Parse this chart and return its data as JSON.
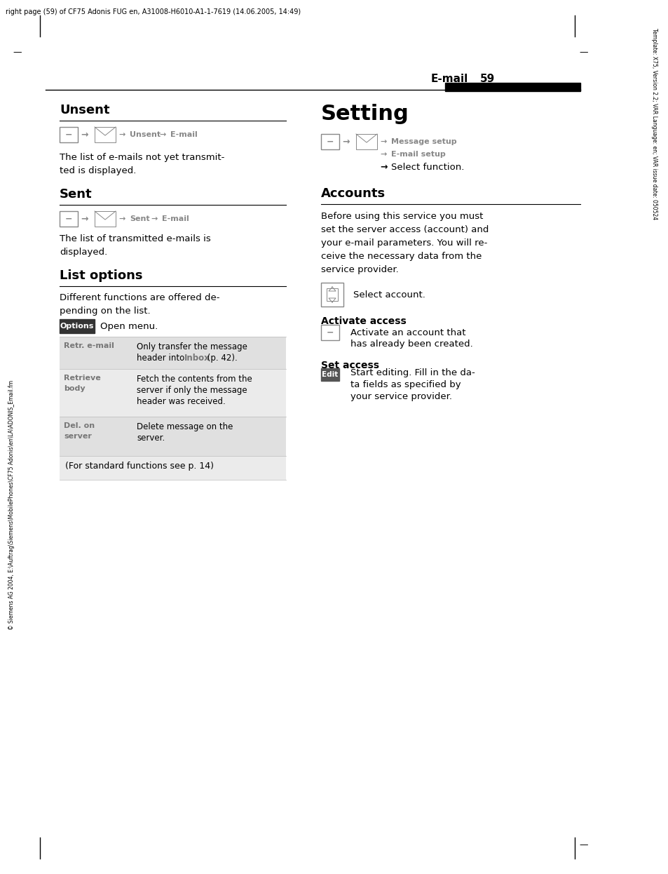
{
  "page_header": "right page (59) of CF75 Adonis FUG en, A31008-H6010-A1-1-7619 (14.06.2005, 14:49)",
  "side_text": "Template: X75, Version 2.2; VAR Language: en; VAR issue date: 050524",
  "side_text2": "© Siemens AG 2004, E:\\Auftrag\\Siemens\\MobilePhones\\CF75 Adonis\\en\\LA\\ADONIS_Email.fm",
  "header_label": "E-mail",
  "header_page": "59",
  "bg_color": "#ffffff",
  "section1_title": "Unsent",
  "section2_title": "Sent",
  "section3_title": "List options",
  "options_label": "Options",
  "options_text": "Open menu.",
  "table_rows": [
    {
      "key": "Retr. e-mail",
      "value1": "Only transfer the message",
      "value2": "header into ",
      "inbox": "Inbox",
      "value3": " (p. 42).",
      "value4": "",
      "multikey": false
    },
    {
      "key": "Retrieve\nbody",
      "value1": "Fetch the contents from the",
      "value2": "server if only the message",
      "value3": "header was received.",
      "value4": "",
      "multikey": true
    },
    {
      "key": "Del. on\nserver",
      "value1": "Delete message on the",
      "value2": "server.",
      "value3": "",
      "value4": "",
      "multikey": true
    },
    {
      "key": "(For standard functions see p. 14)",
      "value1": "",
      "value2": "",
      "value3": "",
      "value4": "",
      "multikey": false
    }
  ],
  "table_bg_even": "#e0e0e0",
  "table_bg_odd": "#ebebeb",
  "right_title": "Setting",
  "accounts_title": "Accounts",
  "accounts_lines": [
    "Before using this service you must",
    "set the server access (account) and",
    "your e-mail parameters. You will re-",
    "ceive the necessary data from the",
    "service provider."
  ],
  "select_account_text": "Select account.",
  "activate_access_title": "Activate access",
  "activate_text1": "Activate an account that",
  "activate_text2": "has already been created.",
  "set_access_title": "Set access",
  "edit_label": "Edit",
  "set_text1": "Start editing. Fill in the da-",
  "set_text2": "ta fields as specified by",
  "set_text3": "your service provider."
}
